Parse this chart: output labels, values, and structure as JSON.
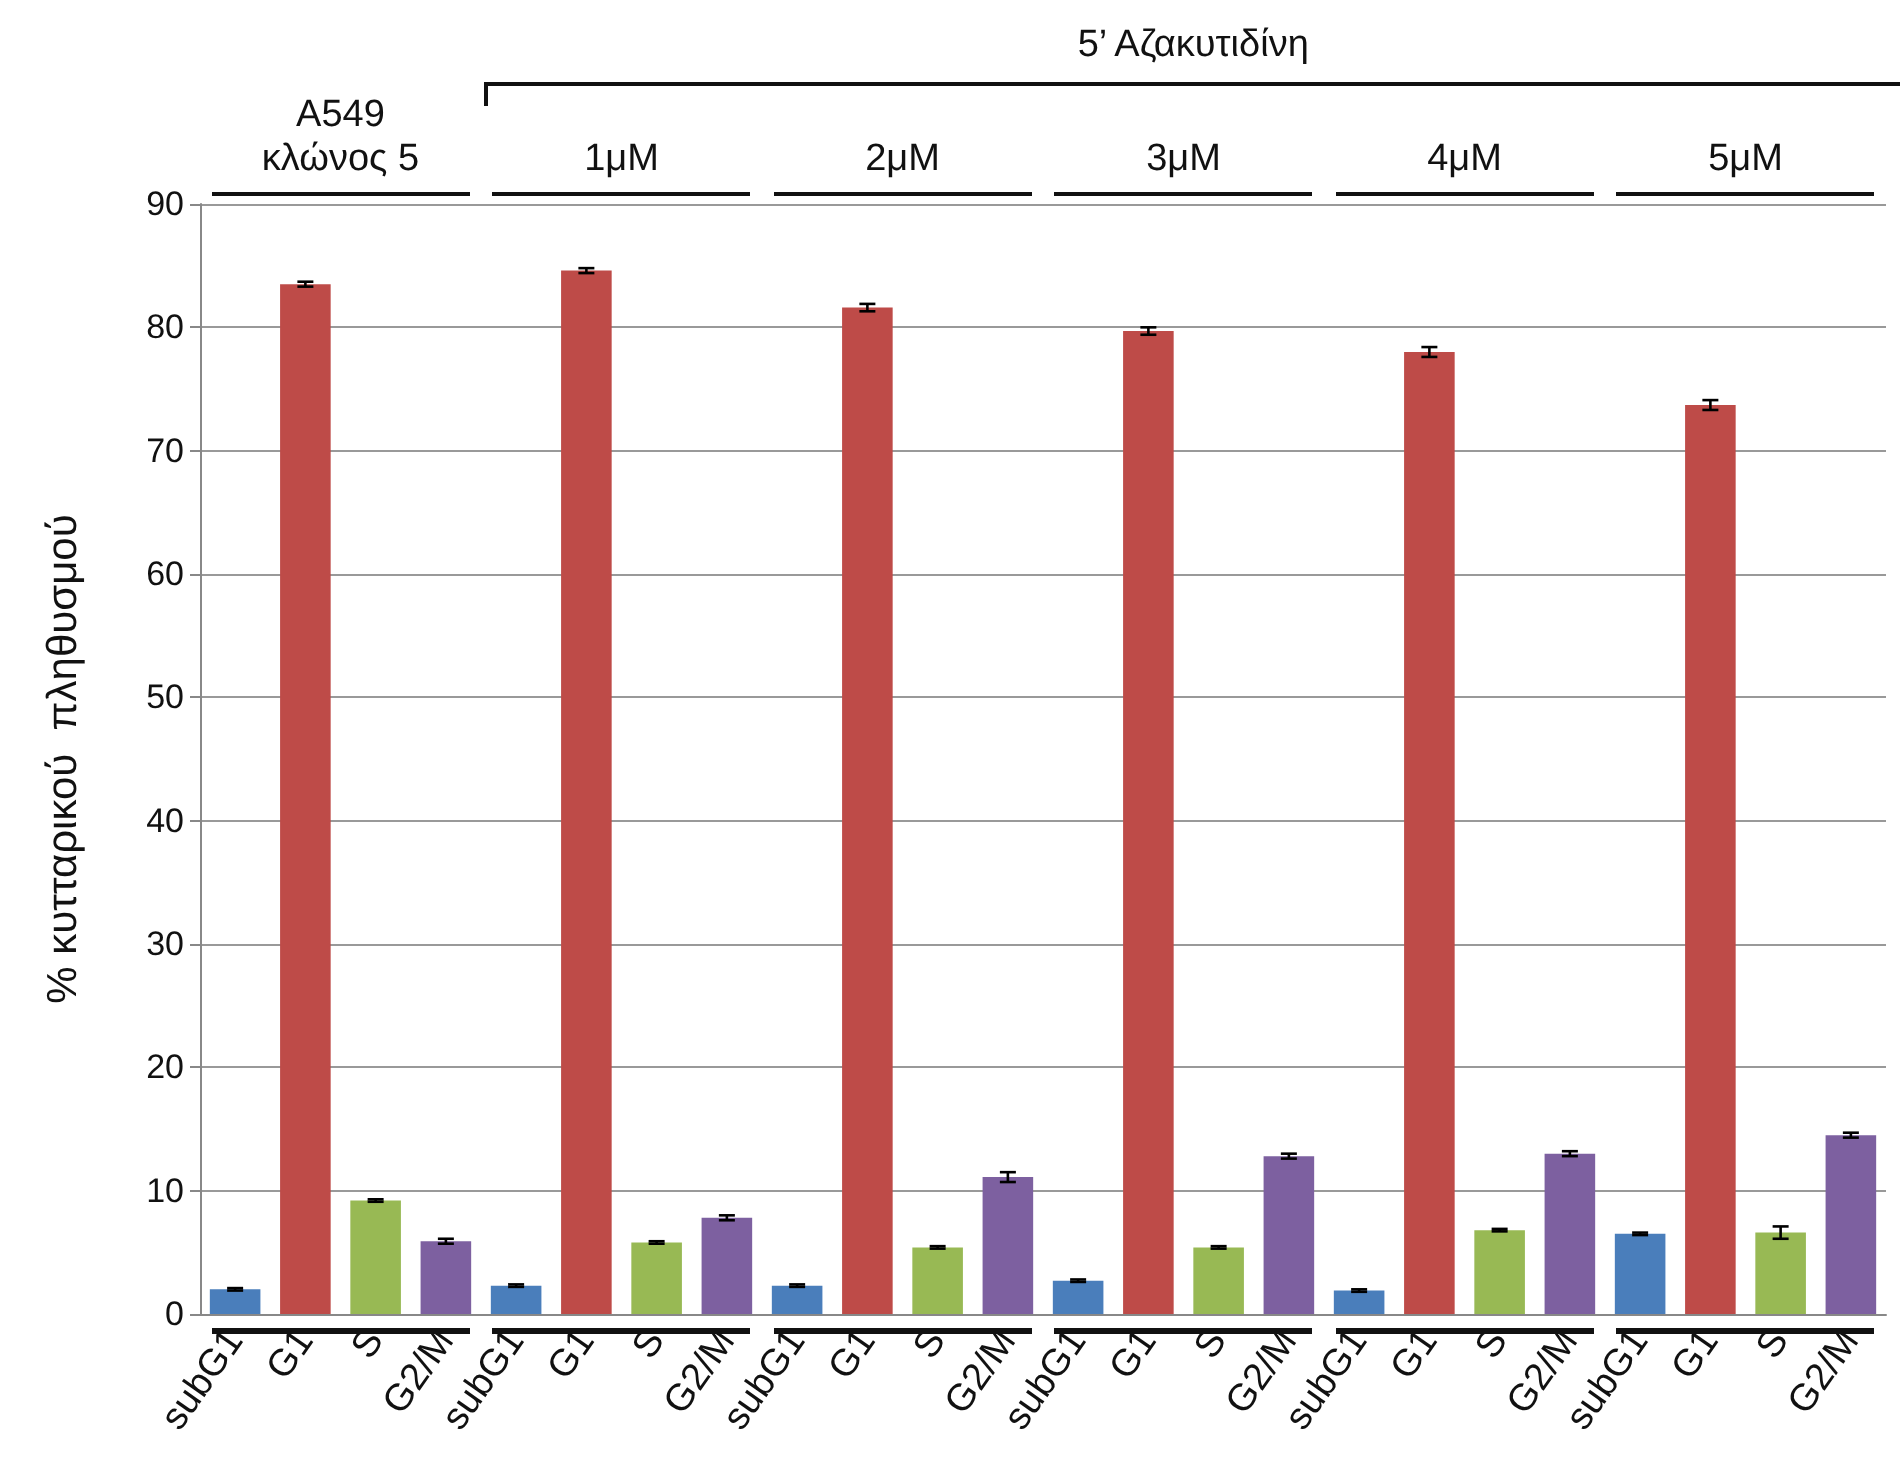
{
  "chart_data": {
    "type": "bar",
    "ylabel": "% κυτταρικού  πληθυσμού",
    "categories": [
      "subG1",
      "G1",
      "S",
      "G2/M",
      "subG1",
      "G1",
      "S",
      "G2/M",
      "subG1",
      "G1",
      "S",
      "G2/M",
      "subG1",
      "G1",
      "S",
      "G2/M",
      "subG1",
      "G1",
      "S",
      "G2/M",
      "subG1",
      "G1",
      "S",
      "G2/M"
    ],
    "values": [
      2.0,
      83.5,
      9.2,
      5.9,
      2.3,
      84.6,
      5.8,
      7.8,
      2.3,
      81.6,
      5.4,
      11.1,
      2.7,
      79.7,
      5.4,
      12.8,
      1.9,
      78.0,
      6.8,
      13.0,
      6.5,
      73.7,
      6.6,
      14.5
    ],
    "colors": [
      "#4a7ebb",
      "#be4b48",
      "#98b954",
      "#7d60a0",
      "#4a7ebb",
      "#be4b48",
      "#98b954",
      "#7d60a0",
      "#4a7ebb",
      "#be4b48",
      "#98b954",
      "#7d60a0",
      "#4a7ebb",
      "#be4b48",
      "#98b954",
      "#7d60a0",
      "#4a7ebb",
      "#be4b48",
      "#98b954",
      "#7d60a0",
      "#4a7ebb",
      "#be4b48",
      "#98b954",
      "#7d60a0"
    ],
    "errors": [
      0.1,
      0.2,
      0.1,
      0.2,
      0.1,
      0.2,
      0.1,
      0.2,
      0.1,
      0.3,
      0.1,
      0.4,
      0.1,
      0.3,
      0.1,
      0.2,
      0.1,
      0.4,
      0.1,
      0.2,
      0.1,
      0.4,
      0.5,
      0.2
    ],
    "ylim": [
      0,
      90
    ],
    "yticks": [
      0,
      10,
      20,
      30,
      40,
      50,
      60,
      70,
      80,
      90
    ],
    "grid": "y",
    "annotations": [
      "5’ Αζακυτιδίνη",
      "A549 κλώνος 5",
      "1μM",
      "2μM",
      "3μM",
      "4μM",
      "5μM"
    ]
  }
}
